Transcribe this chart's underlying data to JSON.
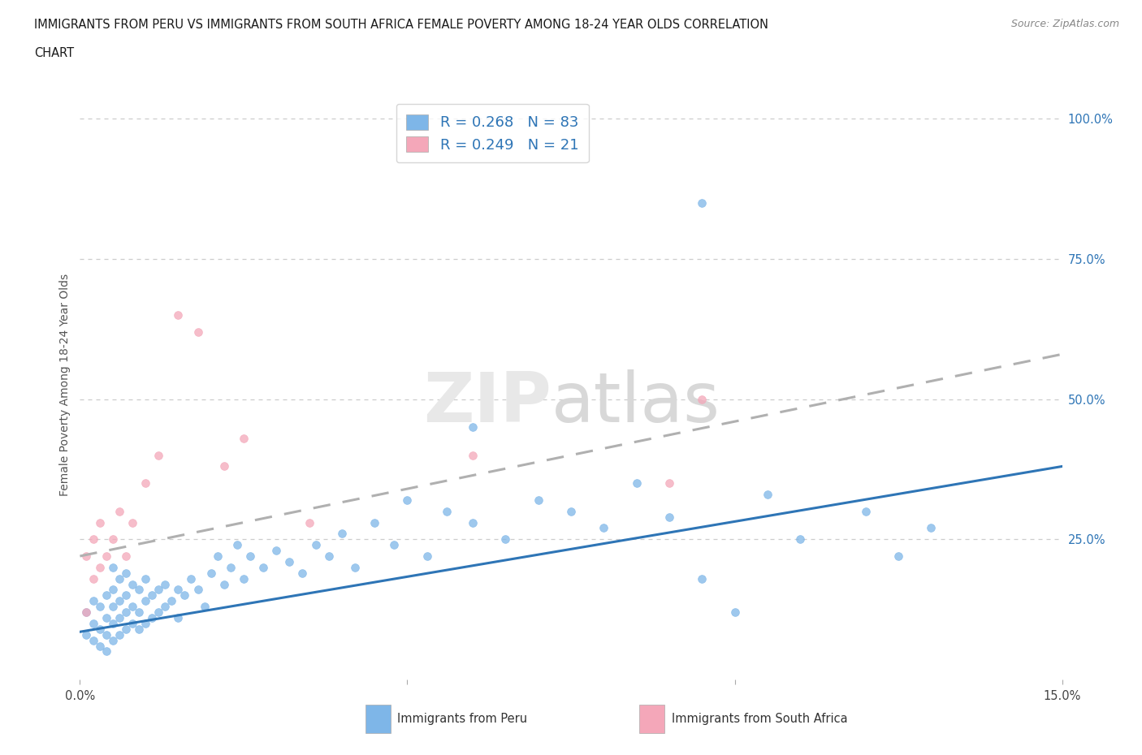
{
  "title_line1": "IMMIGRANTS FROM PERU VS IMMIGRANTS FROM SOUTH AFRICA FEMALE POVERTY AMONG 18-24 YEAR OLDS CORRELATION",
  "title_line2": "CHART",
  "source": "Source: ZipAtlas.com",
  "ylabel": "Female Poverty Among 18-24 Year Olds",
  "xlim": [
    0.0,
    0.15
  ],
  "ylim": [
    0.0,
    1.05
  ],
  "peru_color": "#7EB6E8",
  "sa_color": "#F4A7B9",
  "peru_R": 0.268,
  "peru_N": 83,
  "sa_R": 0.249,
  "sa_N": 21,
  "legend_peru": "Immigrants from Peru",
  "legend_sa": "Immigrants from South Africa",
  "peru_line_color": "#2E75B6",
  "sa_line_color": "#B0B0B0",
  "peru_line_x": [
    0.0,
    0.15
  ],
  "peru_line_y": [
    0.085,
    0.38
  ],
  "sa_line_x": [
    0.0,
    0.15
  ],
  "sa_line_y": [
    0.22,
    0.58
  ],
  "grid_color": "#cccccc",
  "bg_color": "#ffffff",
  "peru_scatter_x": [
    0.001,
    0.001,
    0.002,
    0.002,
    0.002,
    0.003,
    0.003,
    0.003,
    0.004,
    0.004,
    0.004,
    0.004,
    0.005,
    0.005,
    0.005,
    0.005,
    0.005,
    0.006,
    0.006,
    0.006,
    0.006,
    0.007,
    0.007,
    0.007,
    0.007,
    0.008,
    0.008,
    0.008,
    0.009,
    0.009,
    0.009,
    0.01,
    0.01,
    0.01,
    0.011,
    0.011,
    0.012,
    0.012,
    0.013,
    0.013,
    0.014,
    0.015,
    0.015,
    0.016,
    0.017,
    0.018,
    0.019,
    0.02,
    0.021,
    0.022,
    0.023,
    0.024,
    0.025,
    0.026,
    0.028,
    0.03,
    0.032,
    0.034,
    0.036,
    0.038,
    0.04,
    0.042,
    0.045,
    0.048,
    0.05,
    0.053,
    0.056,
    0.06,
    0.065,
    0.07,
    0.075,
    0.08,
    0.085,
    0.09,
    0.095,
    0.1,
    0.105,
    0.11,
    0.12,
    0.125,
    0.13,
    0.095,
    0.06
  ],
  "peru_scatter_y": [
    0.08,
    0.12,
    0.07,
    0.1,
    0.14,
    0.06,
    0.09,
    0.13,
    0.05,
    0.08,
    0.11,
    0.15,
    0.07,
    0.1,
    0.13,
    0.16,
    0.2,
    0.08,
    0.11,
    0.14,
    0.18,
    0.09,
    0.12,
    0.15,
    0.19,
    0.1,
    0.13,
    0.17,
    0.09,
    0.12,
    0.16,
    0.1,
    0.14,
    0.18,
    0.11,
    0.15,
    0.12,
    0.16,
    0.13,
    0.17,
    0.14,
    0.11,
    0.16,
    0.15,
    0.18,
    0.16,
    0.13,
    0.19,
    0.22,
    0.17,
    0.2,
    0.24,
    0.18,
    0.22,
    0.2,
    0.23,
    0.21,
    0.19,
    0.24,
    0.22,
    0.26,
    0.2,
    0.28,
    0.24,
    0.32,
    0.22,
    0.3,
    0.28,
    0.25,
    0.32,
    0.3,
    0.27,
    0.35,
    0.29,
    0.18,
    0.12,
    0.33,
    0.25,
    0.3,
    0.22,
    0.27,
    0.85,
    0.45
  ],
  "sa_scatter_x": [
    0.001,
    0.001,
    0.002,
    0.002,
    0.003,
    0.003,
    0.004,
    0.005,
    0.006,
    0.007,
    0.008,
    0.01,
    0.012,
    0.015,
    0.018,
    0.022,
    0.025,
    0.035,
    0.06,
    0.09,
    0.095
  ],
  "sa_scatter_y": [
    0.12,
    0.22,
    0.18,
    0.25,
    0.2,
    0.28,
    0.22,
    0.25,
    0.3,
    0.22,
    0.28,
    0.35,
    0.4,
    0.65,
    0.62,
    0.38,
    0.43,
    0.28,
    0.4,
    0.35,
    0.5
  ]
}
